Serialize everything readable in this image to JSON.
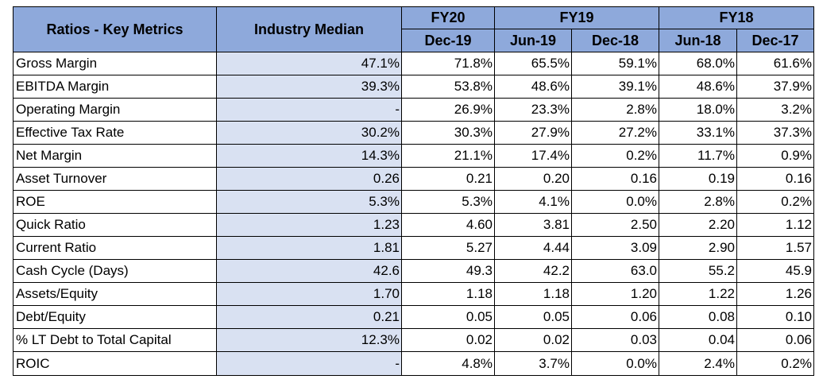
{
  "table": {
    "corner_label": "Ratios - Key Metrics",
    "industry_label": "Industry Median",
    "fiscal_years": [
      {
        "label": "FY20",
        "span": 1
      },
      {
        "label": "FY19",
        "span": 2
      },
      {
        "label": "FY18",
        "span": 2
      }
    ],
    "periods": [
      "Dec-19",
      "Jun-19",
      "Dec-18",
      "Jun-18",
      "Dec-17"
    ],
    "rows": [
      {
        "metric": "Gross Margin",
        "industry": "47.1%",
        "values": [
          "71.8%",
          "65.5%",
          "59.1%",
          "68.0%",
          "61.6%"
        ]
      },
      {
        "metric": "EBITDA Margin",
        "industry": "39.3%",
        "values": [
          "53.8%",
          "48.6%",
          "39.1%",
          "48.6%",
          "37.9%"
        ]
      },
      {
        "metric": "Operating Margin",
        "industry": "-",
        "values": [
          "26.9%",
          "23.3%",
          "2.8%",
          "18.0%",
          "3.2%"
        ]
      },
      {
        "metric": "Effective Tax Rate",
        "industry": "30.2%",
        "values": [
          "30.3%",
          "27.9%",
          "27.2%",
          "33.1%",
          "37.3%"
        ]
      },
      {
        "metric": "Net Margin",
        "industry": "14.3%",
        "values": [
          "21.1%",
          "17.4%",
          "0.2%",
          "11.7%",
          "0.9%"
        ]
      },
      {
        "metric": "Asset Turnover",
        "industry": "0.26",
        "values": [
          "0.21",
          "0.20",
          "0.16",
          "0.19",
          "0.16"
        ]
      },
      {
        "metric": "ROE",
        "industry": "5.3%",
        "values": [
          "5.3%",
          "4.1%",
          "0.0%",
          "2.8%",
          "0.2%"
        ]
      },
      {
        "metric": "Quick Ratio",
        "industry": "1.23",
        "values": [
          "4.60",
          "3.81",
          "2.50",
          "2.20",
          "1.12"
        ]
      },
      {
        "metric": "Current Ratio",
        "industry": "1.81",
        "values": [
          "5.27",
          "4.44",
          "3.09",
          "2.90",
          "1.57"
        ]
      },
      {
        "metric": "Cash Cycle (Days)",
        "industry": "42.6",
        "values": [
          "49.3",
          "42.2",
          "63.0",
          "55.2",
          "45.9"
        ]
      },
      {
        "metric": "Assets/Equity",
        "industry": "1.70",
        "values": [
          "1.18",
          "1.18",
          "1.20",
          "1.22",
          "1.26"
        ]
      },
      {
        "metric": "Debt/Equity",
        "industry": "0.21",
        "values": [
          "0.05",
          "0.05",
          "0.06",
          "0.08",
          "0.10"
        ]
      },
      {
        "metric": "% LT Debt to Total Capital",
        "industry": "12.3%",
        "values": [
          "0.02",
          "0.02",
          "0.03",
          "0.04",
          "0.06"
        ]
      },
      {
        "metric": "ROIC",
        "industry": "-",
        "values": [
          "4.8%",
          "3.7%",
          "0.0%",
          "2.4%",
          "0.2%"
        ]
      }
    ],
    "colors": {
      "header_fill": "#8EA9DB",
      "industry_column_fill": "#D9E1F2",
      "border": "#000000"
    }
  }
}
